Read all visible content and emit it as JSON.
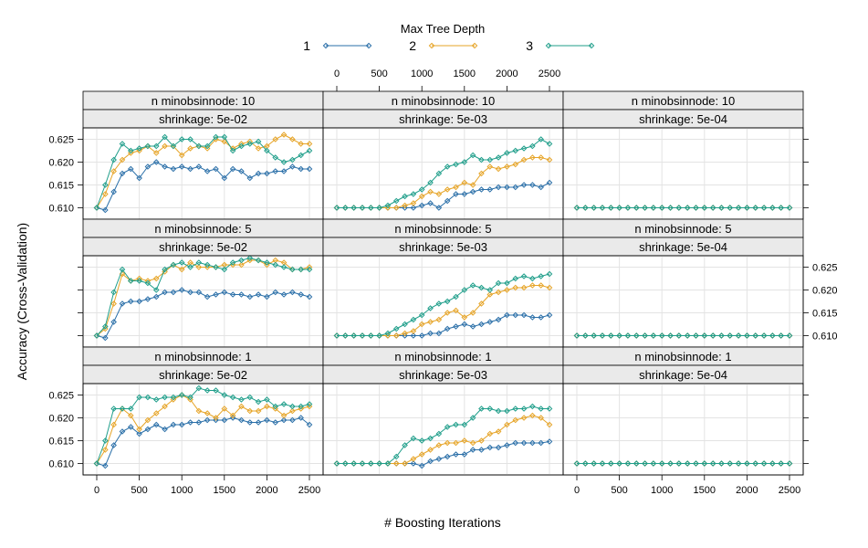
{
  "chart_data": {
    "type": "line",
    "legend": {
      "title": "Max Tree Depth",
      "position": "top",
      "entries": [
        {
          "label": "1",
          "color": "#2a6fa8"
        },
        {
          "label": "2",
          "color": "#e6a427"
        },
        {
          "label": "3",
          "color": "#1f9e8a"
        }
      ]
    },
    "xlabel": "# Boosting Iterations",
    "ylabel": "Accuracy (Cross-Validation)",
    "xlim": [
      0,
      2500
    ],
    "ylim": [
      0.6075,
      0.6275
    ],
    "x_ticks": [
      "0",
      "500",
      "1000",
      "1500",
      "2000",
      "2500"
    ],
    "y_ticks": [
      "0.610",
      "0.615",
      "0.620",
      "0.625"
    ],
    "grid": true,
    "x": [
      0,
      100,
      200,
      300,
      400,
      500,
      600,
      700,
      800,
      900,
      1000,
      1100,
      1200,
      1300,
      1400,
      1500,
      1600,
      1700,
      1800,
      1900,
      2000,
      2100,
      2200,
      2300,
      2400,
      2500
    ],
    "panels": [
      {
        "strip_top": "n minobsinnode: 10",
        "strip_bottom": "shrinkage: 5e-02",
        "series": [
          {
            "name": "1",
            "values": [
              0.61,
              0.6095,
              0.6135,
              0.6175,
              0.6185,
              0.6165,
              0.619,
              0.62,
              0.619,
              0.6185,
              0.619,
              0.6185,
              0.619,
              0.618,
              0.6185,
              0.6165,
              0.6185,
              0.618,
              0.6165,
              0.6175,
              0.6175,
              0.618,
              0.618,
              0.619,
              0.6185,
              0.6185
            ]
          },
          {
            "name": "2",
            "values": [
              0.61,
              0.613,
              0.618,
              0.6205,
              0.622,
              0.6225,
              0.6235,
              0.622,
              0.6235,
              0.6235,
              0.6215,
              0.623,
              0.6235,
              0.623,
              0.625,
              0.6245,
              0.623,
              0.624,
              0.6245,
              0.623,
              0.6235,
              0.625,
              0.626,
              0.625,
              0.624,
              0.624
            ]
          },
          {
            "name": "3",
            "values": [
              0.61,
              0.615,
              0.6205,
              0.624,
              0.6225,
              0.623,
              0.6235,
              0.6235,
              0.6255,
              0.6235,
              0.625,
              0.625,
              0.6235,
              0.6235,
              0.6255,
              0.6255,
              0.6225,
              0.6235,
              0.624,
              0.6245,
              0.6225,
              0.621,
              0.62,
              0.6205,
              0.6215,
              0.6225
            ]
          }
        ]
      },
      {
        "strip_top": "n minobsinnode: 10",
        "strip_bottom": "shrinkage: 5e-03",
        "series": [
          {
            "name": "1",
            "values": [
              0.61,
              0.61,
              0.61,
              0.61,
              0.61,
              0.61,
              0.61,
              0.61,
              0.61,
              0.61,
              0.6105,
              0.611,
              0.61,
              0.6115,
              0.613,
              0.613,
              0.6135,
              0.614,
              0.614,
              0.6145,
              0.6145,
              0.6145,
              0.615,
              0.615,
              0.6145,
              0.6155
            ]
          },
          {
            "name": "2",
            "values": [
              0.61,
              0.61,
              0.61,
              0.61,
              0.61,
              0.61,
              0.61,
              0.61,
              0.6105,
              0.611,
              0.6125,
              0.6135,
              0.613,
              0.614,
              0.6145,
              0.6155,
              0.615,
              0.6175,
              0.619,
              0.6185,
              0.619,
              0.6195,
              0.6205,
              0.621,
              0.621,
              0.6205
            ]
          },
          {
            "name": "3",
            "values": [
              0.61,
              0.61,
              0.61,
              0.61,
              0.61,
              0.61,
              0.6105,
              0.6115,
              0.6125,
              0.613,
              0.614,
              0.6155,
              0.6175,
              0.619,
              0.6195,
              0.62,
              0.6215,
              0.6205,
              0.6205,
              0.621,
              0.622,
              0.6225,
              0.623,
              0.6235,
              0.625,
              0.624
            ]
          }
        ]
      },
      {
        "strip_top": "n minobsinnode: 10",
        "strip_bottom": "shrinkage: 5e-04",
        "series": [
          {
            "name": "1",
            "values": [
              0.61,
              0.61,
              0.61,
              0.61,
              0.61,
              0.61,
              0.61,
              0.61,
              0.61,
              0.61,
              0.61,
              0.61,
              0.61,
              0.61,
              0.61,
              0.61,
              0.61,
              0.61,
              0.61,
              0.61,
              0.61,
              0.61,
              0.61,
              0.61,
              0.61,
              0.61
            ]
          },
          {
            "name": "2",
            "values": [
              0.61,
              0.61,
              0.61,
              0.61,
              0.61,
              0.61,
              0.61,
              0.61,
              0.61,
              0.61,
              0.61,
              0.61,
              0.61,
              0.61,
              0.61,
              0.61,
              0.61,
              0.61,
              0.61,
              0.61,
              0.61,
              0.61,
              0.61,
              0.61,
              0.61,
              0.61
            ]
          },
          {
            "name": "3",
            "values": [
              0.61,
              0.61,
              0.61,
              0.61,
              0.61,
              0.61,
              0.61,
              0.61,
              0.61,
              0.61,
              0.61,
              0.61,
              0.61,
              0.61,
              0.61,
              0.61,
              0.61,
              0.61,
              0.61,
              0.61,
              0.61,
              0.61,
              0.61,
              0.61,
              0.61,
              0.61
            ]
          }
        ]
      },
      {
        "strip_top": "n minobsinnode:  5",
        "strip_bottom": "shrinkage: 5e-02",
        "series": [
          {
            "name": "1",
            "values": [
              0.61,
              0.6095,
              0.613,
              0.617,
              0.6175,
              0.6175,
              0.618,
              0.6185,
              0.6195,
              0.6195,
              0.62,
              0.6195,
              0.6195,
              0.6185,
              0.619,
              0.6195,
              0.619,
              0.619,
              0.6185,
              0.619,
              0.6185,
              0.6195,
              0.619,
              0.6195,
              0.619,
              0.6185
            ]
          },
          {
            "name": "2",
            "values": [
              0.61,
              0.6115,
              0.617,
              0.6235,
              0.622,
              0.6225,
              0.622,
              0.6225,
              0.624,
              0.6255,
              0.6245,
              0.626,
              0.625,
              0.625,
              0.625,
              0.6255,
              0.6255,
              0.6255,
              0.6265,
              0.6265,
              0.6255,
              0.6265,
              0.626,
              0.6245,
              0.6245,
              0.625
            ]
          },
          {
            "name": "3",
            "values": [
              0.61,
              0.612,
              0.6195,
              0.6245,
              0.622,
              0.622,
              0.6215,
              0.62,
              0.6245,
              0.6255,
              0.626,
              0.625,
              0.626,
              0.6255,
              0.625,
              0.6245,
              0.626,
              0.6265,
              0.627,
              0.6265,
              0.626,
              0.6255,
              0.625,
              0.6245,
              0.6245,
              0.6245
            ]
          }
        ]
      },
      {
        "strip_top": "n minobsinnode:  5",
        "strip_bottom": "shrinkage: 5e-03",
        "series": [
          {
            "name": "1",
            "values": [
              0.61,
              0.61,
              0.61,
              0.61,
              0.61,
              0.61,
              0.61,
              0.61,
              0.61,
              0.61,
              0.61,
              0.6105,
              0.6105,
              0.6115,
              0.612,
              0.6125,
              0.612,
              0.6125,
              0.613,
              0.6135,
              0.6145,
              0.6145,
              0.6145,
              0.614,
              0.614,
              0.6145
            ]
          },
          {
            "name": "2",
            "values": [
              0.61,
              0.61,
              0.61,
              0.61,
              0.61,
              0.61,
              0.61,
              0.61,
              0.6105,
              0.611,
              0.6125,
              0.613,
              0.6135,
              0.615,
              0.6155,
              0.614,
              0.615,
              0.617,
              0.619,
              0.6195,
              0.62,
              0.6205,
              0.6205,
              0.621,
              0.621,
              0.6205
            ]
          },
          {
            "name": "3",
            "values": [
              0.61,
              0.61,
              0.61,
              0.61,
              0.61,
              0.61,
              0.6105,
              0.6115,
              0.6125,
              0.6135,
              0.6145,
              0.616,
              0.617,
              0.6175,
              0.6185,
              0.62,
              0.621,
              0.6205,
              0.62,
              0.6215,
              0.6215,
              0.6225,
              0.623,
              0.6225,
              0.623,
              0.6235
            ]
          }
        ]
      },
      {
        "strip_top": "n minobsinnode:  5",
        "strip_bottom": "shrinkage: 5e-04",
        "series": [
          {
            "name": "1",
            "values": [
              0.61,
              0.61,
              0.61,
              0.61,
              0.61,
              0.61,
              0.61,
              0.61,
              0.61,
              0.61,
              0.61,
              0.61,
              0.61,
              0.61,
              0.61,
              0.61,
              0.61,
              0.61,
              0.61,
              0.61,
              0.61,
              0.61,
              0.61,
              0.61,
              0.61,
              0.61
            ]
          },
          {
            "name": "2",
            "values": [
              0.61,
              0.61,
              0.61,
              0.61,
              0.61,
              0.61,
              0.61,
              0.61,
              0.61,
              0.61,
              0.61,
              0.61,
              0.61,
              0.61,
              0.61,
              0.61,
              0.61,
              0.61,
              0.61,
              0.61,
              0.61,
              0.61,
              0.61,
              0.61,
              0.61,
              0.61
            ]
          },
          {
            "name": "3",
            "values": [
              0.61,
              0.61,
              0.61,
              0.61,
              0.61,
              0.61,
              0.61,
              0.61,
              0.61,
              0.61,
              0.61,
              0.61,
              0.61,
              0.61,
              0.61,
              0.61,
              0.61,
              0.61,
              0.61,
              0.61,
              0.61,
              0.61,
              0.61,
              0.61,
              0.61,
              0.61
            ]
          }
        ]
      },
      {
        "strip_top": "n minobsinnode:  1",
        "strip_bottom": "shrinkage: 5e-02",
        "series": [
          {
            "name": "1",
            "values": [
              0.61,
              0.6095,
              0.614,
              0.617,
              0.618,
              0.6165,
              0.6175,
              0.6185,
              0.6175,
              0.6185,
              0.6185,
              0.619,
              0.619,
              0.6195,
              0.6195,
              0.6195,
              0.62,
              0.6195,
              0.619,
              0.619,
              0.6195,
              0.619,
              0.6195,
              0.6195,
              0.62,
              0.6185
            ]
          },
          {
            "name": "2",
            "values": [
              0.61,
              0.613,
              0.6185,
              0.622,
              0.6205,
              0.6175,
              0.6195,
              0.621,
              0.6225,
              0.624,
              0.625,
              0.624,
              0.6215,
              0.621,
              0.62,
              0.622,
              0.6205,
              0.6225,
              0.6215,
              0.6215,
              0.6225,
              0.622,
              0.6205,
              0.6215,
              0.622,
              0.6225
            ]
          },
          {
            "name": "3",
            "values": [
              0.61,
              0.615,
              0.622,
              0.622,
              0.622,
              0.6245,
              0.6245,
              0.624,
              0.6245,
              0.6245,
              0.625,
              0.6245,
              0.6265,
              0.626,
              0.626,
              0.625,
              0.6245,
              0.624,
              0.6245,
              0.6235,
              0.624,
              0.6225,
              0.623,
              0.6225,
              0.6225,
              0.623
            ]
          }
        ]
      },
      {
        "strip_top": "n minobsinnode:  1",
        "strip_bottom": "shrinkage: 5e-03",
        "series": [
          {
            "name": "1",
            "values": [
              0.61,
              0.61,
              0.61,
              0.61,
              0.61,
              0.61,
              0.61,
              0.61,
              0.61,
              0.61,
              0.6095,
              0.6105,
              0.611,
              0.6115,
              0.612,
              0.612,
              0.613,
              0.613,
              0.6135,
              0.6135,
              0.614,
              0.6145,
              0.6145,
              0.6145,
              0.6145,
              0.6148
            ]
          },
          {
            "name": "2",
            "values": [
              0.61,
              0.61,
              0.61,
              0.61,
              0.61,
              0.61,
              0.61,
              0.61,
              0.61,
              0.611,
              0.612,
              0.613,
              0.614,
              0.6145,
              0.6145,
              0.615,
              0.6145,
              0.615,
              0.6165,
              0.617,
              0.6185,
              0.6195,
              0.62,
              0.6205,
              0.62,
              0.6185
            ]
          },
          {
            "name": "3",
            "values": [
              0.61,
              0.61,
              0.61,
              0.61,
              0.61,
              0.61,
              0.61,
              0.6115,
              0.614,
              0.6155,
              0.615,
              0.6155,
              0.6165,
              0.618,
              0.6185,
              0.6185,
              0.62,
              0.622,
              0.622,
              0.6215,
              0.6215,
              0.622,
              0.622,
              0.6225,
              0.622,
              0.622
            ]
          }
        ]
      },
      {
        "strip_top": "n minobsinnode:  1",
        "strip_bottom": "shrinkage: 5e-04",
        "series": [
          {
            "name": "1",
            "values": [
              0.61,
              0.61,
              0.61,
              0.61,
              0.61,
              0.61,
              0.61,
              0.61,
              0.61,
              0.61,
              0.61,
              0.61,
              0.61,
              0.61,
              0.61,
              0.61,
              0.61,
              0.61,
              0.61,
              0.61,
              0.61,
              0.61,
              0.61,
              0.61,
              0.61,
              0.61
            ]
          },
          {
            "name": "2",
            "values": [
              0.61,
              0.61,
              0.61,
              0.61,
              0.61,
              0.61,
              0.61,
              0.61,
              0.61,
              0.61,
              0.61,
              0.61,
              0.61,
              0.61,
              0.61,
              0.61,
              0.61,
              0.61,
              0.61,
              0.61,
              0.61,
              0.61,
              0.61,
              0.61,
              0.61,
              0.61
            ]
          },
          {
            "name": "3",
            "values": [
              0.61,
              0.61,
              0.61,
              0.61,
              0.61,
              0.61,
              0.61,
              0.61,
              0.61,
              0.61,
              0.61,
              0.61,
              0.61,
              0.61,
              0.61,
              0.61,
              0.61,
              0.61,
              0.61,
              0.61,
              0.61,
              0.61,
              0.61,
              0.61,
              0.61,
              0.61
            ]
          }
        ]
      }
    ]
  }
}
